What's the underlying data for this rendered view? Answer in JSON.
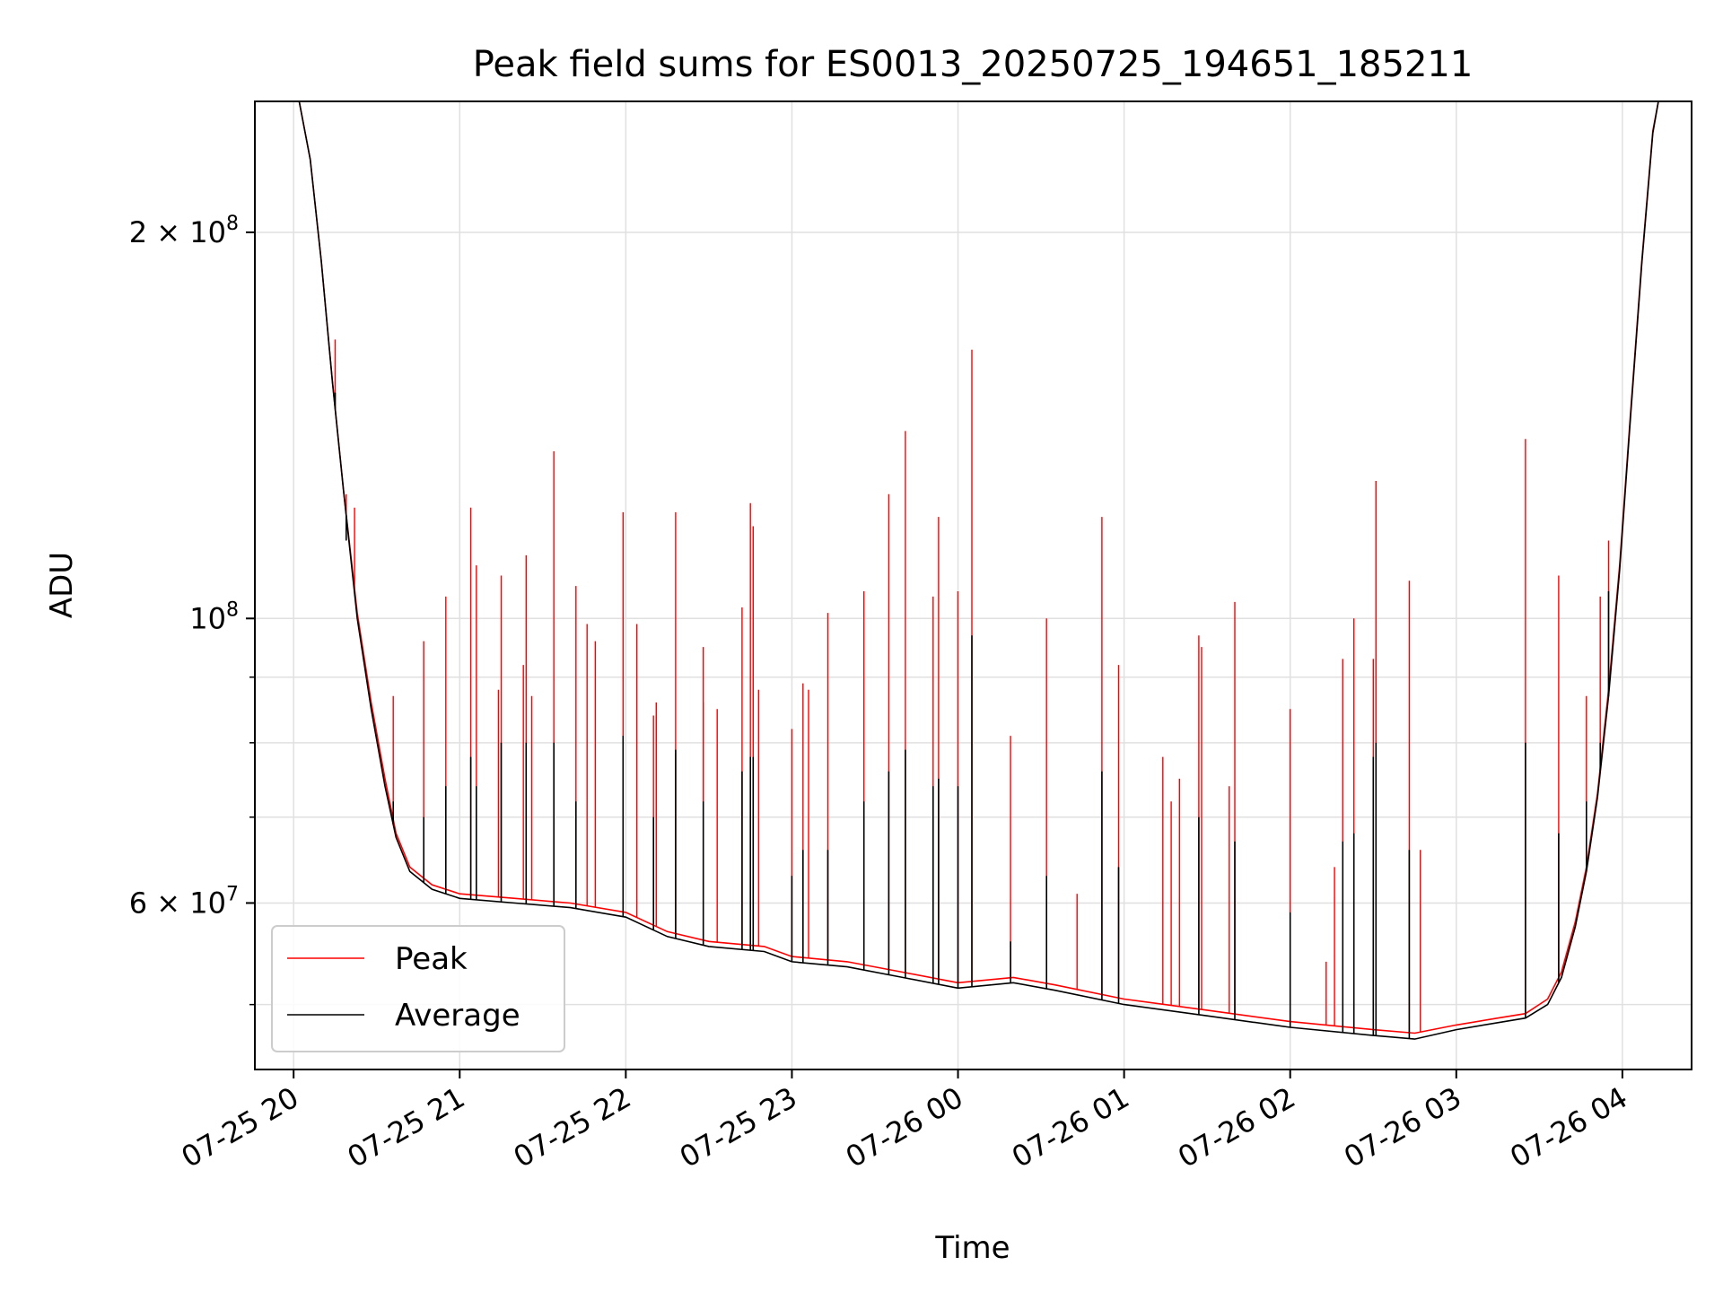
{
  "chart_data": {
    "type": "line",
    "title": "Peak field sums for ES0013_20250725_194651_185211",
    "xlabel": "Time",
    "ylabel": "ADU",
    "y_scale": "log",
    "ylim": [
      44500000,
      253000000
    ],
    "xlim": [
      "2025-07-25 19:46",
      "2025-07-26 04:25"
    ],
    "grid": true,
    "legend_position": "lower-left",
    "x_ticks": [
      {
        "t": "2025-07-25 20:00",
        "label": "07-25 20"
      },
      {
        "t": "2025-07-25 21:00",
        "label": "07-25 21"
      },
      {
        "t": "2025-07-25 22:00",
        "label": "07-25 22"
      },
      {
        "t": "2025-07-25 23:00",
        "label": "07-25 23"
      },
      {
        "t": "2025-07-26 00:00",
        "label": "07-26 00"
      },
      {
        "t": "2025-07-26 01:00",
        "label": "07-26 01"
      },
      {
        "t": "2025-07-26 02:00",
        "label": "07-26 02"
      },
      {
        "t": "2025-07-26 03:00",
        "label": "07-26 03"
      },
      {
        "t": "2025-07-26 04:00",
        "label": "07-26 04"
      }
    ],
    "y_ticks": [
      {
        "value": 60000000,
        "label_base": "6 × 10",
        "label_exp": "7"
      },
      {
        "value": 100000000,
        "label_base": "10",
        "label_exp": "8"
      },
      {
        "value": 200000000,
        "label_base": "2 × 10",
        "label_exp": "8"
      }
    ],
    "y_minor_ticks": [
      50000000,
      70000000,
      80000000,
      90000000
    ],
    "series": [
      {
        "name": "Peak",
        "color": "#ff0000",
        "points": [
          [
            "2025-07-25 20:02",
            253000000
          ],
          [
            "2025-07-25 20:06",
            228000000
          ],
          [
            "2025-07-25 20:10",
            190000000
          ],
          [
            "2025-07-25 20:14",
            153000000
          ],
          [
            "2025-07-25 20:18",
            126000000
          ],
          [
            "2025-07-25 20:23",
            101000000
          ],
          [
            "2025-07-25 20:28",
            86000000
          ],
          [
            "2025-07-25 20:33",
            75000000
          ],
          [
            "2025-07-25 20:37",
            68000000
          ],
          [
            "2025-07-25 20:42",
            64000000
          ],
          [
            "2025-07-25 20:50",
            62000000
          ],
          [
            "2025-07-25 21:00",
            61000000
          ],
          [
            "2025-07-25 21:20",
            60500000
          ],
          [
            "2025-07-25 21:40",
            60000000
          ],
          [
            "2025-07-25 22:00",
            59000000
          ],
          [
            "2025-07-25 22:15",
            57000000
          ],
          [
            "2025-07-25 22:30",
            56000000
          ],
          [
            "2025-07-25 22:50",
            55500000
          ],
          [
            "2025-07-25 23:00",
            54500000
          ],
          [
            "2025-07-25 23:20",
            54000000
          ],
          [
            "2025-07-25 23:40",
            53000000
          ],
          [
            "2025-07-26 00:00",
            52000000
          ],
          [
            "2025-07-26 00:20",
            52500000
          ],
          [
            "2025-07-26 00:35",
            51800000
          ],
          [
            "2025-07-26 01:00",
            50500000
          ],
          [
            "2025-07-26 01:30",
            49500000
          ],
          [
            "2025-07-26 02:00",
            48500000
          ],
          [
            "2025-07-26 02:30",
            47800000
          ],
          [
            "2025-07-26 02:45",
            47500000
          ],
          [
            "2025-07-26 03:00",
            48200000
          ],
          [
            "2025-07-26 03:15",
            48800000
          ],
          [
            "2025-07-26 03:25",
            49200000
          ],
          [
            "2025-07-26 03:33",
            50500000
          ],
          [
            "2025-07-26 03:38",
            53000000
          ],
          [
            "2025-07-26 03:43",
            58000000
          ],
          [
            "2025-07-26 03:47",
            64000000
          ],
          [
            "2025-07-26 03:51",
            73000000
          ],
          [
            "2025-07-26 03:55",
            88000000
          ],
          [
            "2025-07-26 03:59",
            110000000
          ],
          [
            "2025-07-26 04:03",
            145000000
          ],
          [
            "2025-07-26 04:07",
            190000000
          ],
          [
            "2025-07-26 04:11",
            240000000
          ],
          [
            "2025-07-26 04:13",
            253000000
          ]
        ],
        "spikes": [
          [
            "2025-07-25 20:15",
            165000000
          ],
          [
            "2025-07-25 20:19",
            125000000
          ],
          [
            "2025-07-25 20:22",
            122000000
          ],
          [
            "2025-07-25 20:36",
            87000000
          ],
          [
            "2025-07-25 20:47",
            96000000
          ],
          [
            "2025-07-25 20:55",
            104000000
          ],
          [
            "2025-07-25 21:04",
            122000000
          ],
          [
            "2025-07-25 21:06",
            110000000
          ],
          [
            "2025-07-25 21:14",
            88000000
          ],
          [
            "2025-07-25 21:15",
            108000000
          ],
          [
            "2025-07-25 21:23",
            92000000
          ],
          [
            "2025-07-25 21:24",
            112000000
          ],
          [
            "2025-07-25 21:26",
            87000000
          ],
          [
            "2025-07-25 21:34",
            135000000
          ],
          [
            "2025-07-25 21:42",
            106000000
          ],
          [
            "2025-07-25 21:46",
            99000000
          ],
          [
            "2025-07-25 21:49",
            96000000
          ],
          [
            "2025-07-25 21:59",
            121000000
          ],
          [
            "2025-07-25 22:04",
            99000000
          ],
          [
            "2025-07-25 22:10",
            84000000
          ],
          [
            "2025-07-25 22:11",
            86000000
          ],
          [
            "2025-07-25 22:18",
            121000000
          ],
          [
            "2025-07-25 22:28",
            86000000
          ],
          [
            "2025-07-25 22:28",
            95000000
          ],
          [
            "2025-07-25 22:33",
            85000000
          ],
          [
            "2025-07-25 22:42",
            102000000
          ],
          [
            "2025-07-25 22:45",
            123000000
          ],
          [
            "2025-07-25 22:46",
            118000000
          ],
          [
            "2025-07-25 22:48",
            88000000
          ],
          [
            "2025-07-25 23:00",
            82000000
          ],
          [
            "2025-07-25 23:04",
            89000000
          ],
          [
            "2025-07-25 23:06",
            88000000
          ],
          [
            "2025-07-25 23:13",
            101000000
          ],
          [
            "2025-07-25 23:26",
            105000000
          ],
          [
            "2025-07-25 23:35",
            125000000
          ],
          [
            "2025-07-25 23:41",
            140000000
          ],
          [
            "2025-07-25 23:51",
            104000000
          ],
          [
            "2025-07-25 23:53",
            120000000
          ],
          [
            "2025-07-26 00:00",
            105000000
          ],
          [
            "2025-07-26 00:05",
            162000000
          ],
          [
            "2025-07-26 00:19",
            81000000
          ],
          [
            "2025-07-26 00:32",
            100000000
          ],
          [
            "2025-07-26 00:43",
            61000000
          ],
          [
            "2025-07-26 00:52",
            120000000
          ],
          [
            "2025-07-26 00:58",
            92000000
          ],
          [
            "2025-07-26 01:14",
            78000000
          ],
          [
            "2025-07-26 01:17",
            72000000
          ],
          [
            "2025-07-26 01:20",
            75000000
          ],
          [
            "2025-07-26 01:27",
            97000000
          ],
          [
            "2025-07-26 01:28",
            95000000
          ],
          [
            "2025-07-26 01:38",
            74000000
          ],
          [
            "2025-07-26 01:40",
            103000000
          ],
          [
            "2025-07-26 02:00",
            85000000
          ],
          [
            "2025-07-26 02:13",
            54000000
          ],
          [
            "2025-07-26 02:16",
            64000000
          ],
          [
            "2025-07-26 02:19",
            93000000
          ],
          [
            "2025-07-26 02:23",
            100000000
          ],
          [
            "2025-07-26 02:30",
            93000000
          ],
          [
            "2025-07-26 02:31",
            128000000
          ],
          [
            "2025-07-26 02:43",
            107000000
          ],
          [
            "2025-07-26 02:47",
            66000000
          ],
          [
            "2025-07-26 03:25",
            138000000
          ],
          [
            "2025-07-26 03:37",
            108000000
          ],
          [
            "2025-07-26 03:47",
            87000000
          ],
          [
            "2025-07-26 03:52",
            104000000
          ],
          [
            "2025-07-26 03:55",
            115000000
          ]
        ]
      },
      {
        "name": "Average",
        "color": "#000000",
        "points": [
          [
            "2025-07-25 20:02",
            253000000
          ],
          [
            "2025-07-25 20:06",
            228000000
          ],
          [
            "2025-07-25 20:10",
            190000000
          ],
          [
            "2025-07-25 20:14",
            153000000
          ],
          [
            "2025-07-25 20:18",
            126000000
          ],
          [
            "2025-07-25 20:23",
            100000000
          ],
          [
            "2025-07-25 20:28",
            85000000
          ],
          [
            "2025-07-25 20:33",
            74000000
          ],
          [
            "2025-07-25 20:37",
            67500000
          ],
          [
            "2025-07-25 20:42",
            63500000
          ],
          [
            "2025-07-25 20:50",
            61500000
          ],
          [
            "2025-07-25 21:00",
            60500000
          ],
          [
            "2025-07-25 21:20",
            60000000
          ],
          [
            "2025-07-25 21:40",
            59500000
          ],
          [
            "2025-07-25 22:00",
            58500000
          ],
          [
            "2025-07-25 22:15",
            56500000
          ],
          [
            "2025-07-25 22:30",
            55500000
          ],
          [
            "2025-07-25 22:50",
            55000000
          ],
          [
            "2025-07-25 23:00",
            54000000
          ],
          [
            "2025-07-25 23:20",
            53500000
          ],
          [
            "2025-07-25 23:40",
            52500000
          ],
          [
            "2025-07-26 00:00",
            51500000
          ],
          [
            "2025-07-26 00:20",
            52000000
          ],
          [
            "2025-07-26 00:35",
            51300000
          ],
          [
            "2025-07-26 01:00",
            50000000
          ],
          [
            "2025-07-26 01:30",
            49000000
          ],
          [
            "2025-07-26 02:00",
            48000000
          ],
          [
            "2025-07-26 02:30",
            47300000
          ],
          [
            "2025-07-26 02:45",
            47000000
          ],
          [
            "2025-07-26 03:00",
            47800000
          ],
          [
            "2025-07-26 03:15",
            48400000
          ],
          [
            "2025-07-26 03:25",
            48800000
          ],
          [
            "2025-07-26 03:33",
            50000000
          ],
          [
            "2025-07-26 03:38",
            52500000
          ],
          [
            "2025-07-26 03:43",
            57500000
          ],
          [
            "2025-07-26 03:47",
            63500000
          ],
          [
            "2025-07-26 03:51",
            72500000
          ],
          [
            "2025-07-26 03:55",
            87000000
          ],
          [
            "2025-07-26 03:59",
            109000000
          ],
          [
            "2025-07-26 04:03",
            144000000
          ],
          [
            "2025-07-26 04:07",
            189000000
          ],
          [
            "2025-07-26 04:11",
            239000000
          ],
          [
            "2025-07-26 04:13",
            253000000
          ]
        ],
        "spikes": [
          [
            "2025-07-25 20:15",
            150000000
          ],
          [
            "2025-07-25 20:19",
            115000000
          ],
          [
            "2025-07-25 20:36",
            72000000
          ],
          [
            "2025-07-25 20:47",
            70000000
          ],
          [
            "2025-07-25 20:55",
            74000000
          ],
          [
            "2025-07-25 21:04",
            78000000
          ],
          [
            "2025-07-25 21:06",
            74000000
          ],
          [
            "2025-07-25 21:15",
            80000000
          ],
          [
            "2025-07-25 21:24",
            80000000
          ],
          [
            "2025-07-25 21:34",
            80000000
          ],
          [
            "2025-07-25 21:42",
            72000000
          ],
          [
            "2025-07-25 21:59",
            81000000
          ],
          [
            "2025-07-25 22:10",
            70000000
          ],
          [
            "2025-07-25 22:18",
            79000000
          ],
          [
            "2025-07-25 22:28",
            72000000
          ],
          [
            "2025-07-25 22:42",
            76000000
          ],
          [
            "2025-07-25 22:45",
            78000000
          ],
          [
            "2025-07-25 22:46",
            78000000
          ],
          [
            "2025-07-25 23:00",
            63000000
          ],
          [
            "2025-07-25 23:04",
            66000000
          ],
          [
            "2025-07-25 23:13",
            66000000
          ],
          [
            "2025-07-25 23:26",
            72000000
          ],
          [
            "2025-07-25 23:35",
            76000000
          ],
          [
            "2025-07-25 23:41",
            79000000
          ],
          [
            "2025-07-25 23:51",
            74000000
          ],
          [
            "2025-07-25 23:53",
            75000000
          ],
          [
            "2025-07-26 00:00",
            74000000
          ],
          [
            "2025-07-26 00:05",
            97000000
          ],
          [
            "2025-07-26 00:19",
            56000000
          ],
          [
            "2025-07-26 00:32",
            63000000
          ],
          [
            "2025-07-26 00:52",
            76000000
          ],
          [
            "2025-07-26 00:58",
            64000000
          ],
          [
            "2025-07-26 01:27",
            70000000
          ],
          [
            "2025-07-26 01:40",
            67000000
          ],
          [
            "2025-07-26 02:00",
            59000000
          ],
          [
            "2025-07-26 02:19",
            67000000
          ],
          [
            "2025-07-26 02:23",
            68000000
          ],
          [
            "2025-07-26 02:30",
            78000000
          ],
          [
            "2025-07-26 02:31",
            80000000
          ],
          [
            "2025-07-26 02:43",
            66000000
          ],
          [
            "2025-07-26 03:25",
            80000000
          ],
          [
            "2025-07-26 03:37",
            68000000
          ],
          [
            "2025-07-26 03:47",
            72000000
          ],
          [
            "2025-07-26 03:52",
            80000000
          ],
          [
            "2025-07-26 03:55",
            105000000
          ]
        ]
      }
    ]
  }
}
